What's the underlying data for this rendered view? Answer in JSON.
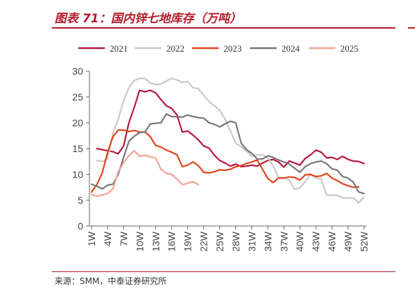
{
  "header": {
    "title": "图表 71：国内锌七地库存（万吨）"
  },
  "footer": {
    "source": "来源：SMM，中泰证券研究所"
  },
  "chart_data": {
    "type": "line",
    "title": "图表 71：国内锌七地库存（万吨）",
    "xlabel": "",
    "ylabel": "",
    "ylim": [
      0,
      30
    ],
    "yticks": [
      0,
      5,
      10,
      15,
      20,
      25,
      30
    ],
    "x_domain": [
      1,
      52
    ],
    "xticks": [
      "1W",
      "4W",
      "7W",
      "10W",
      "13W",
      "16W",
      "19W",
      "22W",
      "25W",
      "28W",
      "31W",
      "34W",
      "37W",
      "40W",
      "43W",
      "46W",
      "49W",
      "52W"
    ],
    "grid": false,
    "legend_position": "top",
    "series": [
      {
        "name": "2021",
        "color": "#b5173f",
        "width": 2.2,
        "x": [
          2,
          5,
          6,
          7,
          8,
          9,
          10,
          11,
          12,
          13,
          14,
          15,
          16,
          17,
          18,
          19,
          20,
          21,
          22,
          23,
          24,
          25,
          26,
          27,
          28,
          29,
          30,
          31,
          32,
          33,
          34,
          35,
          36,
          37,
          38,
          39,
          40,
          41,
          42,
          43,
          44,
          45,
          46,
          47,
          48,
          49,
          50,
          51,
          52
        ],
        "y": [
          15,
          14.4,
          14,
          15.5,
          20,
          23,
          26.3,
          26,
          26.3,
          25.8,
          24.5,
          23.3,
          22.8,
          21.5,
          18.2,
          18.4,
          17.6,
          16.7,
          15.5,
          15.1,
          13.7,
          12.7,
          12.2,
          11.6,
          12.0,
          11.5,
          11.6,
          11.8,
          11.6,
          12.2,
          12.7,
          12.9,
          12.4,
          11.4,
          12.6,
          12.2,
          11.8,
          13.1,
          13.8,
          14.7,
          14.3,
          13.2,
          13.3,
          12.9,
          13.5,
          12.9,
          12.6,
          12.5,
          12.1
        ]
      },
      {
        "name": "2022",
        "color": "#c9c9c9",
        "width": 2.2,
        "x": [
          2,
          3,
          4,
          5,
          6,
          7,
          8,
          9,
          10,
          11,
          12,
          13,
          14,
          15,
          16,
          17,
          18,
          19,
          20,
          21,
          22,
          23,
          24,
          25,
          26,
          27,
          28,
          29,
          30,
          31,
          32,
          33,
          34,
          35,
          36,
          37,
          38,
          39,
          40,
          41,
          42,
          43,
          44,
          45,
          46,
          47,
          48,
          49,
          50,
          51,
          52
        ],
        "y": [
          12.7,
          12.5,
          13,
          17.9,
          20.7,
          24.3,
          26.8,
          28.2,
          28.6,
          28.6,
          27.7,
          27.4,
          27.5,
          28.1,
          28.6,
          28.3,
          27.8,
          28.0,
          26.8,
          26.6,
          25.3,
          24.1,
          23.3,
          22.4,
          20.7,
          18.4,
          16.0,
          15.4,
          14.5,
          13.5,
          13.8,
          13.8,
          13.2,
          11.6,
          9.4,
          9.3,
          8.9,
          7.1,
          7.4,
          8.6,
          10.0,
          9.3,
          9.1,
          6.0,
          6.0,
          5.9,
          5.5,
          5.4,
          5.5,
          4.5,
          5.6
        ]
      },
      {
        "name": "2023",
        "color": "#e0451a",
        "width": 2.2,
        "x": [
          1,
          2,
          3,
          4,
          5,
          6,
          7,
          8,
          9,
          10,
          11,
          12,
          13,
          14,
          15,
          16,
          17,
          18,
          19,
          20,
          21,
          22,
          23,
          24,
          25,
          26,
          27,
          28,
          29,
          30,
          31,
          32,
          33,
          34,
          35,
          36,
          37,
          38,
          39,
          40,
          41,
          42,
          43,
          44,
          45,
          46,
          47,
          48,
          49,
          50,
          51
        ],
        "y": [
          6.6,
          8.0,
          10.3,
          14.2,
          17.3,
          18.6,
          18.6,
          18.3,
          18.5,
          18.2,
          18.2,
          17.3,
          15.6,
          15.3,
          14.7,
          14.3,
          13.8,
          11.5,
          11.8,
          12.4,
          11.7,
          10.4,
          10.3,
          10.5,
          10.9,
          10.8,
          11.0,
          11.5,
          11.7,
          12.1,
          12.4,
          12.8,
          11.0,
          9.2,
          8.4,
          9.3,
          9.3,
          9.5,
          9.4,
          8.9,
          9.9,
          10.0,
          9.6,
          9.7,
          10.2,
          9.3,
          8.8,
          8.2,
          7.8,
          7.5,
          7.6
        ]
      },
      {
        "name": "2024",
        "color": "#777777",
        "width": 2.2,
        "x": [
          1,
          2,
          3,
          4,
          5,
          6,
          7,
          8,
          9,
          10,
          11,
          12,
          13,
          14,
          15,
          16,
          17,
          18,
          19,
          20,
          21,
          22,
          23,
          24,
          25,
          26,
          27,
          28,
          29,
          30,
          31,
          32,
          33,
          34,
          35,
          36,
          37,
          38,
          39,
          40,
          41,
          42,
          43,
          44,
          45,
          46,
          47,
          48,
          49,
          50,
          51,
          52
        ],
        "y": [
          8.1,
          7.7,
          7.2,
          7.9,
          8.1,
          10,
          13.3,
          16.4,
          17.4,
          18.1,
          18.2,
          19.8,
          19.9,
          20.0,
          21.7,
          21.2,
          21.2,
          21.1,
          21.5,
          21.2,
          21.0,
          20.9,
          20.0,
          19.7,
          19.2,
          19.8,
          20.3,
          20.0,
          16.1,
          14.8,
          14.1,
          13.0,
          13.0,
          13.6,
          13.3,
          12.8,
          12.4,
          12.0,
          11.2,
          10.4,
          11.5,
          12.1,
          12.4,
          12.6,
          12.1,
          11.1,
          10.8,
          9.6,
          9.3,
          8.5,
          6.6,
          6.3
        ]
      },
      {
        "name": "2025",
        "color": "#f4a396",
        "width": 2.2,
        "x": [
          1,
          2,
          3,
          4,
          5,
          6,
          7,
          8,
          9,
          10,
          11,
          12,
          13,
          14,
          15,
          16,
          17,
          18,
          19,
          20,
          21
        ],
        "y": [
          6.1,
          5.8,
          6.0,
          6.3,
          7.2,
          10.5,
          12.3,
          13.6,
          14.6,
          13.5,
          13.7,
          13.4,
          13.2,
          11.0,
          10.2,
          10.0,
          9.1,
          8.0,
          8.3,
          8.6,
          8.0
        ]
      }
    ]
  }
}
